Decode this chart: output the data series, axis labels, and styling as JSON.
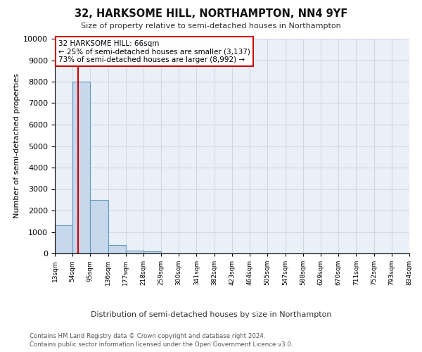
{
  "title": "32, HARKSOME HILL, NORTHAMPTON, NN4 9YF",
  "subtitle": "Size of property relative to semi-detached houses in Northampton",
  "xlabel": "Distribution of semi-detached houses by size in Northampton",
  "ylabel": "Number of semi-detached properties",
  "bar_values": [
    1300,
    8000,
    2500,
    380,
    130,
    100,
    0,
    0,
    0,
    0,
    0,
    0,
    0,
    0,
    0,
    0,
    0,
    0,
    0,
    0
  ],
  "bin_edges": [
    13,
    54,
    95,
    136,
    177,
    218,
    259,
    300,
    341,
    382,
    423,
    464,
    505,
    547,
    588,
    629,
    670,
    711,
    752,
    793,
    834
  ],
  "x_tick_labels": [
    "13sqm",
    "54sqm",
    "95sqm",
    "136sqm",
    "177sqm",
    "218sqm",
    "259sqm",
    "300sqm",
    "341sqm",
    "382sqm",
    "423sqm",
    "464sqm",
    "505sqm",
    "547sqm",
    "588sqm",
    "629sqm",
    "670sqm",
    "711sqm",
    "752sqm",
    "793sqm",
    "834sqm"
  ],
  "ylim": [
    0,
    10000
  ],
  "bar_color": "#c5d8ec",
  "bar_edge_color": "#6699bb",
  "grid_color": "#d0d8e8",
  "property_size": 66,
  "property_line_color": "#cc0000",
  "annotation_text": "32 HARKSOME HILL: 66sqm\n← 25% of semi-detached houses are smaller (3,137)\n73% of semi-detached houses are larger (8,992) →",
  "annotation_box_edgecolor": "#cc0000",
  "footer_line1": "Contains HM Land Registry data © Crown copyright and database right 2024.",
  "footer_line2": "Contains public sector information licensed under the Open Government Licence v3.0.",
  "bg_color": "#ffffff",
  "plot_bg_color": "#eaf0f8",
  "yticks": [
    0,
    1000,
    2000,
    3000,
    4000,
    5000,
    6000,
    7000,
    8000,
    9000,
    10000
  ]
}
